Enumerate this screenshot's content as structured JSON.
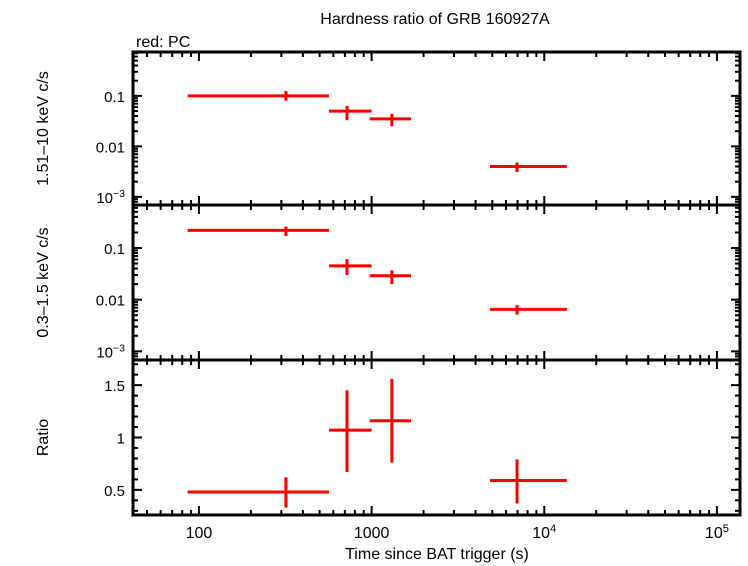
{
  "chart_data": {
    "type": "scatter",
    "title": "Hardness ratio of GRB 160927A",
    "legend_note": "red: PC",
    "xlabel": "Time since BAT trigger (s)",
    "xscale": "log",
    "xlim": [
      41.5,
      136000
    ],
    "xticks": [
      {
        "value": 100,
        "label": "100"
      },
      {
        "value": 1000,
        "label": "1000"
      },
      {
        "value": 10000,
        "label": "10",
        "sup": "4"
      },
      {
        "value": 100000,
        "label": "10",
        "sup": "5"
      }
    ],
    "color": "#ff0000",
    "panels": [
      {
        "ylabel": "1.51–10 keV c/s",
        "yscale": "log",
        "ylim": [
          0.00069,
          0.74
        ],
        "yticks": [
          {
            "value": 0.1,
            "label": "0.1"
          },
          {
            "value": 0.01,
            "label": "0.01"
          },
          {
            "value": 0.001,
            "label": "10",
            "sup": "−3"
          }
        ],
        "points": [
          {
            "x": 319,
            "xlo": 86,
            "xhi": 566,
            "y": 0.1,
            "ylo": 0.08,
            "yhi": 0.125
          },
          {
            "x": 720,
            "xlo": 566,
            "xhi": 1000,
            "y": 0.05,
            "ylo": 0.033,
            "yhi": 0.063
          },
          {
            "x": 1310,
            "xlo": 975,
            "xhi": 1690,
            "y": 0.035,
            "ylo": 0.025,
            "yhi": 0.044
          },
          {
            "x": 6950,
            "xlo": 4850,
            "xhi": 13500,
            "y": 0.004,
            "ylo": 0.0031,
            "yhi": 0.0048
          }
        ]
      },
      {
        "ylabel": "0.3–1.5 keV c/s",
        "yscale": "log",
        "ylim": [
          0.00068,
          0.68
        ],
        "yticks": [
          {
            "value": 0.1,
            "label": "0.1"
          },
          {
            "value": 0.01,
            "label": "0.01"
          },
          {
            "value": 0.001,
            "label": "10",
            "sup": "−3"
          }
        ],
        "points": [
          {
            "x": 319,
            "xlo": 86,
            "xhi": 566,
            "y": 0.22,
            "ylo": 0.17,
            "yhi": 0.26
          },
          {
            "x": 720,
            "xlo": 566,
            "xhi": 1000,
            "y": 0.045,
            "ylo": 0.03,
            "yhi": 0.061
          },
          {
            "x": 1310,
            "xlo": 975,
            "xhi": 1690,
            "y": 0.029,
            "ylo": 0.02,
            "yhi": 0.037
          },
          {
            "x": 6950,
            "xlo": 4850,
            "xhi": 13500,
            "y": 0.0065,
            "ylo": 0.0051,
            "yhi": 0.0079
          }
        ]
      },
      {
        "ylabel": "Ratio",
        "yscale": "linear",
        "ylim": [
          0.26,
          1.74
        ],
        "yticks": [
          {
            "value": 1.5,
            "label": "1.5"
          },
          {
            "value": 1,
            "label": "1"
          },
          {
            "value": 0.5,
            "label": "0.5"
          }
        ],
        "points": [
          {
            "x": 319,
            "xlo": 86,
            "xhi": 566,
            "y": 0.48,
            "ylo": 0.33,
            "yhi": 0.62
          },
          {
            "x": 720,
            "xlo": 566,
            "xhi": 1000,
            "y": 1.07,
            "ylo": 0.67,
            "yhi": 1.45
          },
          {
            "x": 1310,
            "xlo": 975,
            "xhi": 1690,
            "y": 1.16,
            "ylo": 0.76,
            "yhi": 1.56
          },
          {
            "x": 6950,
            "xlo": 4850,
            "xhi": 13500,
            "y": 0.59,
            "ylo": 0.37,
            "yhi": 0.79
          }
        ]
      }
    ]
  }
}
